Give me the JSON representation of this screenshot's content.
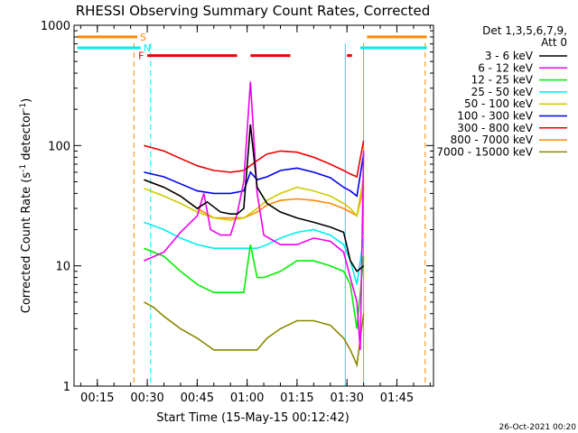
{
  "chart_data": {
    "type": "line",
    "title": "RHESSI Observing Summary Count Rates, Corrected",
    "xlabel": "Start Time (15-May-15 00:12:42)",
    "ylabel_main": "Corrected Count Rate (s",
    "ylabel_sup1": "-1",
    "ylabel_mid": " detector",
    "ylabel_sup2": "-1",
    "ylabel_end": ")",
    "yscale": "log",
    "ylim": [
      1,
      1000
    ],
    "xlim_minutes": [
      8,
      116
    ],
    "y_ticks": [
      {
        "value": 1,
        "label": "1"
      },
      {
        "value": 10,
        "label": "10"
      },
      {
        "value": 100,
        "label": "100"
      },
      {
        "value": 1000,
        "label": "1000"
      }
    ],
    "x_ticks": [
      {
        "minute": 15,
        "label": "00:15"
      },
      {
        "minute": 30,
        "label": "00:30"
      },
      {
        "minute": 45,
        "label": "00:45"
      },
      {
        "minute": 60,
        "label": "01:00"
      },
      {
        "minute": 75,
        "label": "01:15"
      },
      {
        "minute": 90,
        "label": "01:30"
      },
      {
        "minute": 105,
        "label": "01:45"
      }
    ],
    "legend_header_1": "Det 1,3,5,6,7,9,",
    "legend_header_2": "Att 0",
    "legend_position": "top-right, outside plot",
    "series": [
      {
        "name": "3 - 6 keV",
        "color": "#000000",
        "x": [
          29,
          35,
          40,
          45,
          48,
          52,
          55,
          57,
          59,
          61,
          63,
          66,
          70,
          75,
          80,
          85,
          89,
          91,
          93,
          95
        ],
        "y": [
          52,
          45,
          38,
          30,
          34,
          28,
          27,
          27,
          30,
          150,
          45,
          33,
          28,
          25,
          23,
          21,
          19,
          11,
          9,
          10
        ]
      },
      {
        "name": "6 - 12 keV",
        "color": "#ee00ee",
        "x": [
          29,
          35,
          40,
          45,
          47,
          49,
          52,
          55,
          57,
          59,
          61,
          63,
          65,
          70,
          75,
          80,
          85,
          89,
          91,
          93,
          94,
          95
        ],
        "y": [
          11,
          13,
          19,
          26,
          40,
          20,
          18,
          18,
          27,
          50,
          340,
          40,
          18,
          15,
          15,
          17,
          16,
          13,
          8,
          5,
          2,
          90
        ]
      },
      {
        "name": "12 - 25 keV",
        "color": "#00ee00",
        "x": [
          29,
          35,
          40,
          45,
          50,
          55,
          59,
          61,
          63,
          65,
          70,
          75,
          80,
          85,
          89,
          91,
          93,
          95
        ],
        "y": [
          14,
          12,
          9,
          7,
          6,
          6,
          6,
          15,
          8,
          8,
          9,
          11,
          11,
          10,
          9,
          7,
          3,
          12
        ]
      },
      {
        "name": "25 - 50 keV",
        "color": "#00eeee",
        "x": [
          29,
          35,
          40,
          45,
          50,
          55,
          59,
          63,
          66,
          70,
          75,
          80,
          85,
          89,
          91,
          93,
          95
        ],
        "y": [
          23,
          20,
          17,
          15,
          14,
          14,
          14,
          14,
          15,
          17,
          19,
          20,
          18,
          15,
          11,
          7,
          17
        ]
      },
      {
        "name": "50 - 100 keV",
        "color": "#cccc00",
        "x": [
          29,
          35,
          40,
          45,
          50,
          55,
          59,
          63,
          66,
          70,
          75,
          80,
          85,
          89,
          91,
          93,
          95
        ],
        "y": [
          44,
          38,
          33,
          28,
          25,
          24,
          25,
          30,
          35,
          40,
          45,
          42,
          38,
          33,
          30,
          26,
          55
        ]
      },
      {
        "name": "100 - 300 keV",
        "color": "#0000ee",
        "x": [
          29,
          35,
          40,
          45,
          50,
          55,
          59,
          61,
          63,
          66,
          70,
          75,
          80,
          85,
          89,
          91,
          93,
          95
        ],
        "y": [
          60,
          55,
          48,
          42,
          40,
          40,
          42,
          60,
          52,
          55,
          62,
          65,
          60,
          54,
          45,
          42,
          38,
          85
        ]
      },
      {
        "name": "300 - 800 keV",
        "color": "#ee0000",
        "x": [
          29,
          35,
          40,
          45,
          50,
          55,
          59,
          63,
          66,
          70,
          75,
          80,
          85,
          89,
          91,
          93,
          95
        ],
        "y": [
          100,
          90,
          78,
          68,
          62,
          60,
          62,
          75,
          85,
          90,
          88,
          80,
          70,
          62,
          58,
          55,
          110
        ]
      },
      {
        "name": "800 - 7000 keV",
        "color": "#ff8800",
        "x": [
          29,
          35,
          40,
          45,
          50,
          55,
          59,
          63,
          66,
          70,
          75,
          80,
          85,
          89,
          91,
          93,
          95
        ],
        "y": [
          52,
          45,
          38,
          30,
          25,
          25,
          25,
          28,
          32,
          35,
          36,
          35,
          33,
          30,
          28,
          26,
          45
        ]
      },
      {
        "name": "7000 - 15000 keV",
        "color": "#888800",
        "x": [
          29,
          32,
          35,
          40,
          45,
          50,
          55,
          59,
          63,
          66,
          70,
          75,
          80,
          85,
          89,
          91,
          93,
          95
        ],
        "y": [
          5,
          4.5,
          3.8,
          3,
          2.5,
          2,
          2,
          2,
          2,
          2.5,
          3,
          3.5,
          3.5,
          3.2,
          2.5,
          2,
          1.5,
          4
        ]
      }
    ],
    "flag_bars": [
      {
        "label": "S",
        "color": "#ff8800",
        "x_start": 9,
        "x_end": 27,
        "value": 800
      },
      {
        "label": "S",
        "color": "#ff8800",
        "x_start": 96,
        "x_end": 114,
        "value": 800
      },
      {
        "label": "N",
        "color": "#00eeee",
        "x_start": 9,
        "x_end": 28,
        "value": 650
      },
      {
        "label": "N",
        "color": "#00eeee",
        "x_start": 94,
        "x_end": 114,
        "value": 650
      },
      {
        "label": "F",
        "color": "#ee0000",
        "segments": [
          [
            30,
            57
          ],
          [
            61,
            73
          ],
          [
            90,
            91.5
          ]
        ],
        "value": 560
      }
    ],
    "vertical_markers": [
      {
        "minute": 26,
        "color": "#ff8800",
        "style": "dashed"
      },
      {
        "minute": 31,
        "color": "#00eeee",
        "style": "dashed"
      },
      {
        "minute": 113.5,
        "color": "#ff8800",
        "style": "dashed"
      },
      {
        "minute": 89.5,
        "color": "#00eeee",
        "style": "solid"
      },
      {
        "minute": 95,
        "color": "#ff8800",
        "style": "solid"
      }
    ]
  },
  "footer": {
    "timestamp": "26-Oct-2021 00:20"
  }
}
